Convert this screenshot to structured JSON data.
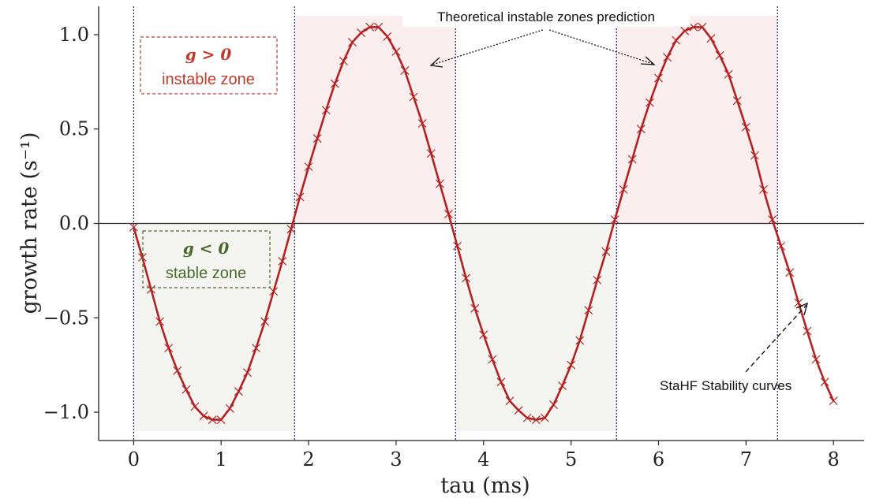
{
  "chart_data": {
    "type": "line",
    "xlabel": "tau (ms)",
    "ylabel": "growth rate (s⁻¹)",
    "xlim": [
      -0.4,
      8.35
    ],
    "ylim": [
      -1.15,
      1.15
    ],
    "xticks": [
      0,
      1,
      2,
      3,
      4,
      5,
      6,
      7,
      8
    ],
    "yticks": [
      -1.0,
      -0.5,
      0.0,
      0.5,
      1.0
    ],
    "xtick_labels": [
      "0",
      "1",
      "2",
      "3",
      "4",
      "5",
      "6",
      "7",
      "8"
    ],
    "ytick_labels": [
      "−1.0",
      "−0.5",
      "0.0",
      "0.5",
      "1.0"
    ],
    "zero_crossings": [
      0,
      1.84,
      3.68,
      5.52,
      7.36
    ],
    "unstable_zones": [
      [
        1.84,
        3.68
      ],
      [
        5.52,
        7.36
      ]
    ],
    "stable_zones": [
      [
        0,
        1.84
      ],
      [
        3.68,
        5.52
      ]
    ],
    "series": [
      {
        "x": [
          0.0,
          0.1,
          0.2,
          0.3,
          0.4,
          0.5,
          0.6,
          0.7,
          0.8,
          0.9,
          1.0,
          1.1,
          1.2,
          1.3,
          1.4,
          1.5,
          1.6,
          1.7,
          1.8,
          1.9,
          2.0,
          2.1,
          2.2,
          2.3,
          2.4,
          2.5,
          2.6,
          2.7,
          2.8,
          2.9,
          3.0,
          3.1,
          3.2,
          3.3,
          3.4,
          3.5,
          3.6,
          3.7,
          3.8,
          3.9,
          4.0,
          4.1,
          4.2,
          4.3,
          4.4,
          4.5,
          4.6,
          4.7,
          4.8,
          4.9,
          5.0,
          5.1,
          5.2,
          5.3,
          5.4,
          5.5,
          5.6,
          5.7,
          5.8,
          5.9,
          6.0,
          6.1,
          6.2,
          6.3,
          6.4,
          6.5,
          6.6,
          6.7,
          6.8,
          6.9,
          7.0,
          7.1,
          7.2,
          7.3,
          7.4,
          7.5,
          7.6,
          7.7,
          7.8,
          7.9,
          8.0
        ],
        "y": [
          -0.02,
          -0.18,
          -0.35,
          -0.52,
          -0.66,
          -0.78,
          -0.88,
          -0.97,
          -1.02,
          -1.04,
          -1.04,
          -0.98,
          -0.89,
          -0.79,
          -0.66,
          -0.52,
          -0.36,
          -0.2,
          -0.03,
          0.14,
          0.3,
          0.45,
          0.6,
          0.74,
          0.86,
          0.96,
          1.01,
          1.04,
          1.04,
          0.99,
          0.91,
          0.81,
          0.67,
          0.53,
          0.37,
          0.21,
          0.05,
          -0.12,
          -0.29,
          -0.45,
          -0.59,
          -0.72,
          -0.84,
          -0.94,
          -0.99,
          -1.03,
          -1.04,
          -1.03,
          -0.96,
          -0.86,
          -0.75,
          -0.62,
          -0.46,
          -0.3,
          -0.15,
          0.02,
          0.18,
          0.34,
          0.5,
          0.64,
          0.77,
          0.88,
          0.97,
          1.02,
          1.04,
          1.04,
          0.98,
          0.89,
          0.79,
          0.65,
          0.51,
          0.36,
          0.18,
          0.02,
          -0.12,
          -0.26,
          -0.42,
          -0.57,
          -0.72,
          -0.84,
          -0.94
        ],
        "color": "#b22222"
      }
    ],
    "annotations": {
      "theory": "Theoretical instable zones prediction",
      "stahf": "StaHF Stability curves",
      "instable_symbol": "g > 0",
      "instable_text": "instable zone",
      "stable_symbol": "g < 0",
      "stable_text": "stable zone"
    },
    "colors": {
      "curve": "#b22222",
      "instable_fill": "#fbeeee",
      "stable_fill": "#f4f4f1",
      "boundary": "#2b2b7a",
      "instable_text": "#c0392b",
      "stable_text": "#4a6a2c"
    },
    "grid": false
  }
}
